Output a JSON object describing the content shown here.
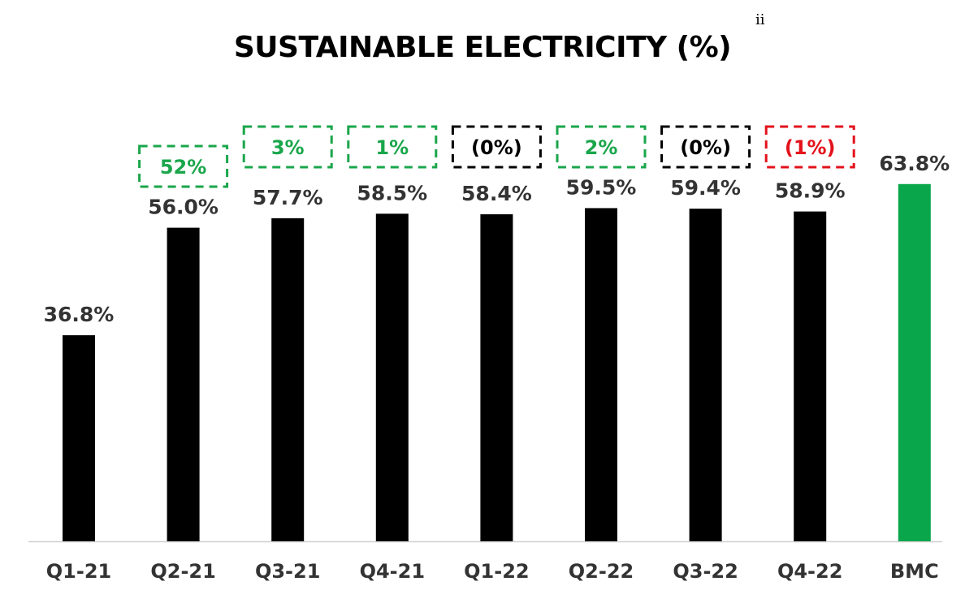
{
  "title": "SUSTAINABLE ELECTRICITY (%)",
  "title_superscript": "ii",
  "colors": {
    "bar_default": "#000000",
    "bar_benchmark": "#0aa64b",
    "change_positive": "#1aa64b",
    "change_neutral": "#000000",
    "change_negative": "#e3121b",
    "label_text": "#333333",
    "baseline": "#d0d0d0"
  },
  "chart_data": {
    "type": "bar",
    "title": "SUSTAINABLE ELECTRICITY (%)",
    "categories": [
      "Q1-21",
      "Q2-21",
      "Q3-21",
      "Q4-21",
      "Q1-22",
      "Q2-22",
      "Q3-22",
      "Q4-22",
      "BMC"
    ],
    "values": [
      36.8,
      56.0,
      57.7,
      58.5,
      58.4,
      59.5,
      59.4,
      58.9,
      63.8
    ],
    "value_labels": [
      "36.8%",
      "56.0%",
      "57.7%",
      "58.5%",
      "58.4%",
      "59.5%",
      "59.4%",
      "58.9%",
      "63.8%"
    ],
    "changes": [
      null,
      "52%",
      "3%",
      "1%",
      "(0%)",
      "2%",
      "(0%)",
      "(1%)",
      null
    ],
    "change_sentiment": [
      null,
      "positive",
      "positive",
      "positive",
      "neutral",
      "positive",
      "neutral",
      "negative",
      null
    ],
    "highlight_category": "BMC",
    "ylim": [
      0,
      70
    ],
    "grid": false,
    "legend": "none"
  }
}
